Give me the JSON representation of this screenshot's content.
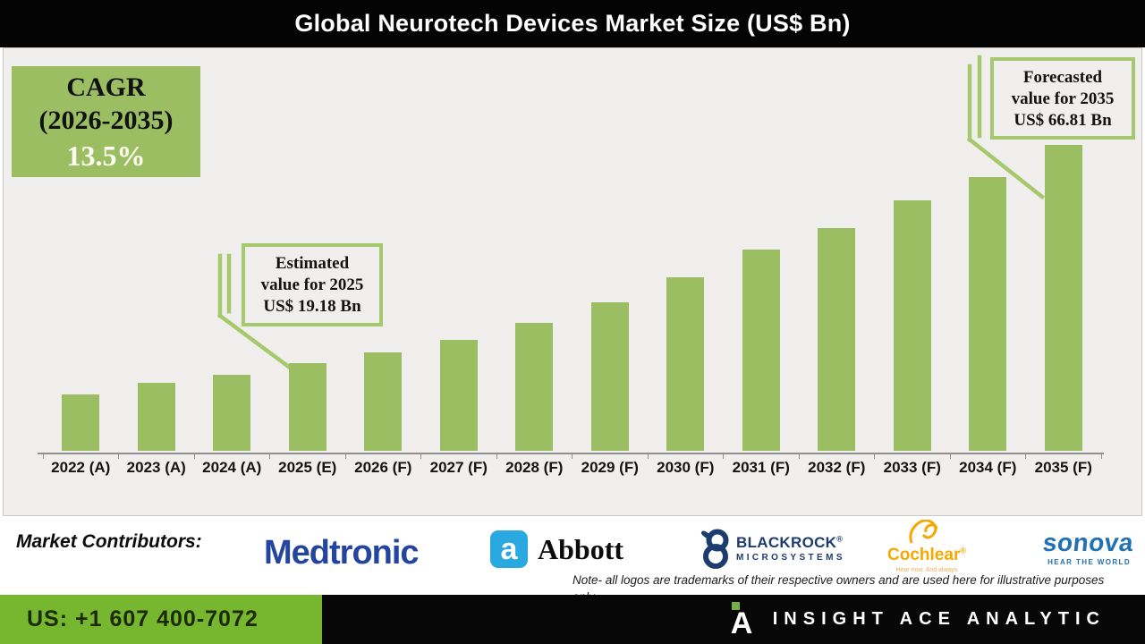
{
  "header": {
    "title": "Global Neurotech Devices Market Size (US$ Bn)"
  },
  "cagr": {
    "label": "CAGR",
    "range": "(2026-2035)",
    "value": "13.5%"
  },
  "callouts": {
    "estimated": {
      "line1": "Estimated",
      "line2": "value for 2025",
      "line3": "US$ 19.18 Bn"
    },
    "forecasted": {
      "line1": "Forecasted",
      "line2": "value for 2035",
      "line3": "US$ 66.81 Bn"
    }
  },
  "chart_data": {
    "type": "bar",
    "title": "Global Neurotech Devices Market Size (US$ Bn)",
    "unit": "US$ Bn",
    "categories": [
      "2022 (A)",
      "2023 (A)",
      "2024 (A)",
      "2025 (E)",
      "2026 (F)",
      "2027 (F)",
      "2028 (F)",
      "2029 (F)",
      "2030 (F)",
      "2031 (F)",
      "2032 (F)",
      "2033 (F)",
      "2034 (F)",
      "2035 (F)"
    ],
    "values": [
      12.3,
      14.8,
      16.6,
      19.18,
      21.4,
      24.2,
      28.0,
      32.5,
      37.8,
      44.0,
      48.6,
      54.7,
      59.8,
      66.81
    ],
    "labeled_points": {
      "2025 (E)": 19.18,
      "2035 (F)": 66.81
    },
    "ylim": [
      0,
      70
    ],
    "grid": false,
    "legend": false,
    "bar_color": "#9CBE62",
    "background": "#F0EFED",
    "accent_border": "#A6C96D"
  },
  "contributors": {
    "label": "Market Contributors:",
    "companies": [
      {
        "name": "Medtronic",
        "color": "#24459E"
      },
      {
        "name": "Abbott",
        "icon_letter": "a",
        "icon_color": "#29A9E0"
      },
      {
        "name": "BLACKROCK",
        "reg": "®",
        "subtext": "MICROSYSTEMS",
        "color": "#1D3C6E"
      },
      {
        "name": "Cochlear",
        "reg": "®",
        "tagline": "Hear now. And always",
        "color": "#F5A800"
      },
      {
        "name": "sonova",
        "tagline": "HEAR THE WORLD",
        "color": "#2071B5"
      }
    ]
  },
  "note": {
    "line1": "Note- all logos are trademarks of their respective owners and are used here for illustrative purposes",
    "line2": "only"
  },
  "footer": {
    "phone": "US: +1 607 400-7072",
    "brand": "INSIGHT ACE ANALYTIC",
    "brand_icon_letter": "A",
    "phone_box_color": "#77B62F"
  }
}
